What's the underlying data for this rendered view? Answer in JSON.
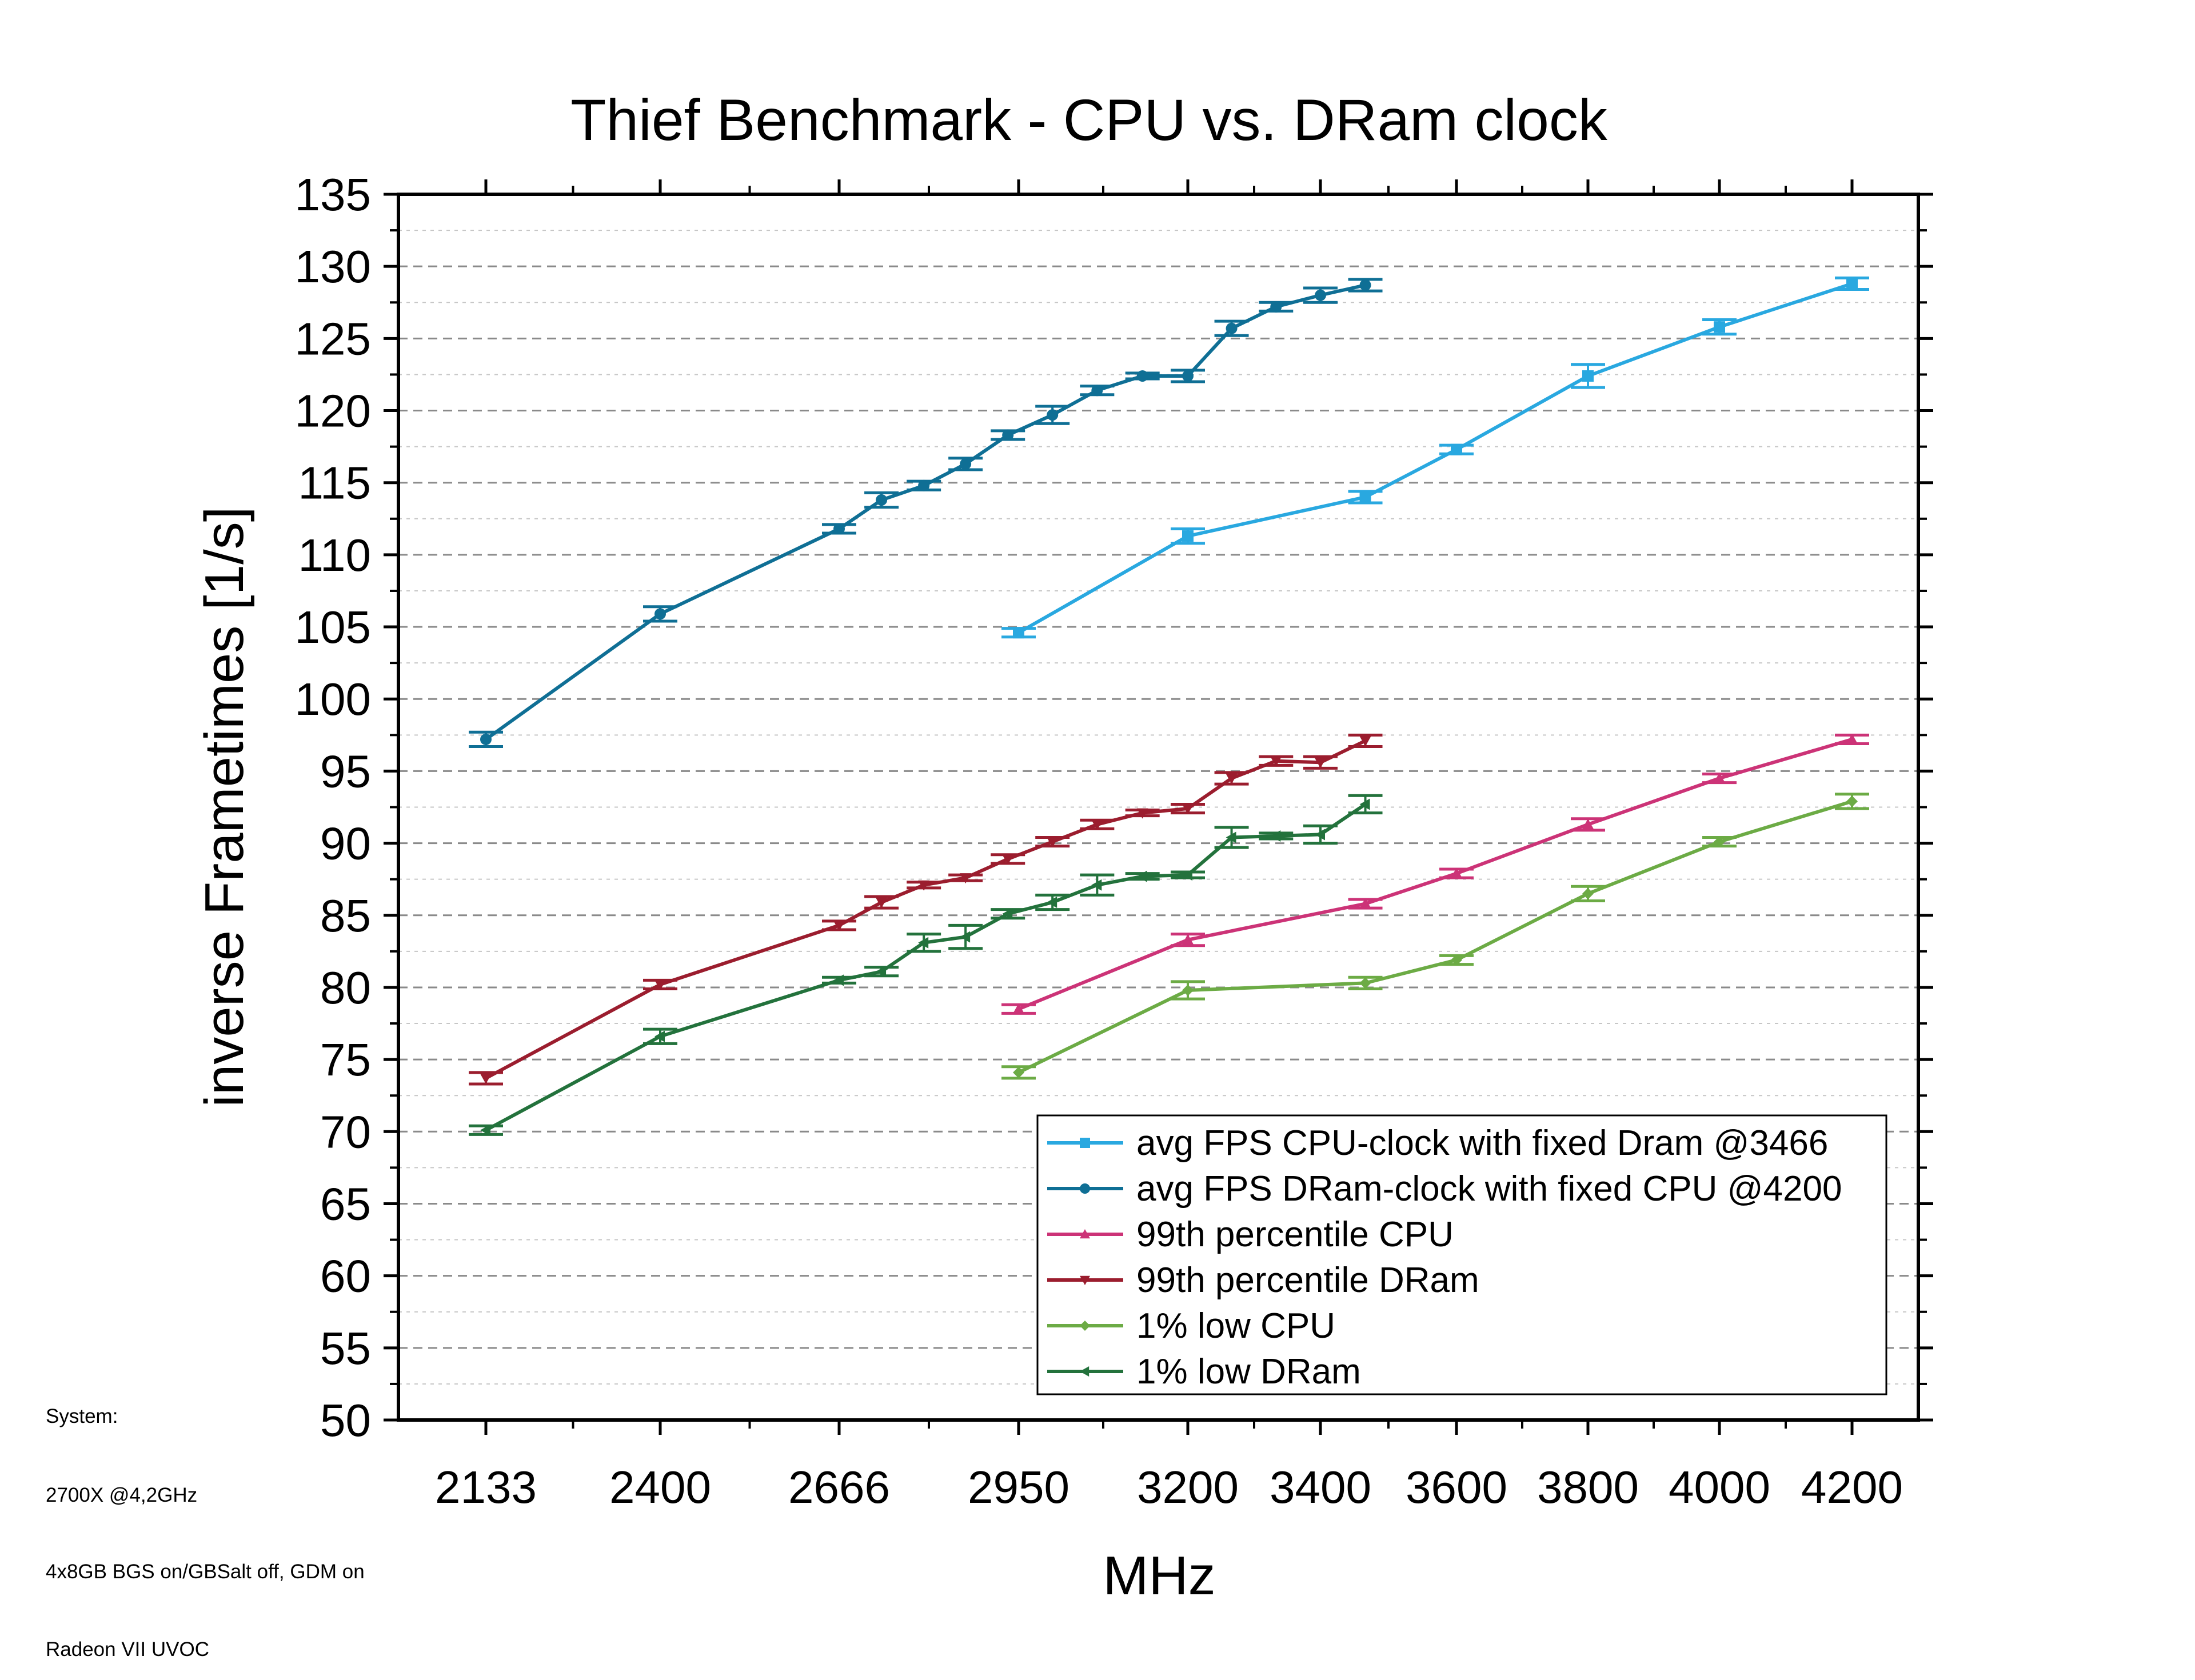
{
  "chart_data": {
    "type": "line",
    "title": "Thief Benchmark - CPU vs. DRam clock",
    "xlabel": "MHz",
    "ylabel": "inverse Frametimes [1/s]",
    "ylim": [
      50,
      135
    ],
    "y_ticks": [
      50,
      55,
      60,
      65,
      70,
      75,
      80,
      85,
      90,
      95,
      100,
      105,
      110,
      115,
      120,
      125,
      130,
      135
    ],
    "x_ticks": [
      "2133",
      "2400",
      "2666",
      "2950",
      "3200",
      "3400",
      "3600",
      "3800",
      "4000",
      "4200"
    ],
    "x_tick_values": [
      2133,
      2400,
      2666,
      2950,
      3200,
      3400,
      3600,
      3800,
      4000,
      4200
    ],
    "xlim": [
      2000,
      4300
    ],
    "grid": true,
    "legend_position": "bottom-right",
    "series": [
      {
        "name": "avg FPS CPU-clock with fixed Dram @3466",
        "color": "#29a8e0",
        "marker": "square",
        "x": [
          2950,
          3200,
          3466,
          3600,
          3800,
          4000,
          4200
        ],
        "y": [
          104.6,
          111.3,
          114.0,
          117.3,
          122.4,
          125.8,
          128.8
        ],
        "err": [
          0.3,
          0.5,
          0.4,
          0.3,
          0.8,
          0.5,
          0.4
        ]
      },
      {
        "name": "avg FPS DRam-clock with fixed CPU @4200",
        "color": "#0f6f95",
        "marker": "circle",
        "x": [
          2133,
          2400,
          2666,
          2733,
          2800,
          2866,
          2933,
          3000,
          3066,
          3133,
          3200,
          3266,
          3333,
          3400,
          3466
        ],
        "y": [
          97.2,
          105.9,
          111.8,
          113.8,
          114.8,
          116.3,
          118.3,
          119.7,
          121.4,
          122.4,
          122.4,
          125.7,
          127.2,
          128.0,
          128.7
        ],
        "err": [
          0.5,
          0.5,
          0.3,
          0.5,
          0.3,
          0.4,
          0.3,
          0.6,
          0.3,
          0.2,
          0.4,
          0.5,
          0.3,
          0.5,
          0.4
        ]
      },
      {
        "name": "99th percentile CPU",
        "color": "#cc3377",
        "marker": "triangle-up",
        "x": [
          2950,
          3200,
          3466,
          3600,
          3800,
          4000,
          4200
        ],
        "y": [
          78.5,
          83.3,
          85.8,
          87.9,
          91.3,
          94.5,
          97.2
        ],
        "err": [
          0.3,
          0.4,
          0.3,
          0.3,
          0.4,
          0.3,
          0.3
        ]
      },
      {
        "name": "99th percentile DRam",
        "color": "#9b1d2e",
        "marker": "triangle-down",
        "x": [
          2133,
          2400,
          2666,
          2733,
          2800,
          2866,
          2933,
          3000,
          3066,
          3133,
          3200,
          3266,
          3333,
          3400,
          3466
        ],
        "y": [
          73.7,
          80.2,
          84.3,
          85.9,
          87.1,
          87.6,
          88.9,
          90.1,
          91.3,
          92.1,
          92.4,
          94.5,
          95.7,
          95.6,
          97.1
        ],
        "err": [
          0.4,
          0.3,
          0.3,
          0.4,
          0.2,
          0.2,
          0.3,
          0.3,
          0.3,
          0.2,
          0.3,
          0.4,
          0.3,
          0.4,
          0.4
        ]
      },
      {
        "name": "1% low CPU",
        "color": "#6cab45",
        "marker": "diamond",
        "x": [
          2950,
          3200,
          3466,
          3600,
          3800,
          4000,
          4200
        ],
        "y": [
          74.1,
          79.8,
          80.3,
          81.9,
          86.5,
          90.1,
          92.9
        ],
        "err": [
          0.4,
          0.6,
          0.4,
          0.3,
          0.5,
          0.3,
          0.5
        ]
      },
      {
        "name": "1% low DRam",
        "color": "#23723c",
        "marker": "triangle-left",
        "x": [
          2133,
          2400,
          2666,
          2733,
          2800,
          2866,
          2933,
          3000,
          3066,
          3133,
          3200,
          3266,
          3333,
          3400,
          3466
        ],
        "y": [
          70.1,
          76.6,
          80.5,
          81.1,
          83.1,
          83.5,
          85.1,
          85.9,
          87.1,
          87.7,
          87.8,
          90.4,
          90.5,
          90.6,
          92.7
        ],
        "err": [
          0.3,
          0.5,
          0.2,
          0.3,
          0.6,
          0.8,
          0.3,
          0.5,
          0.7,
          0.2,
          0.2,
          0.7,
          0.2,
          0.6,
          0.6
        ]
      }
    ]
  },
  "notes": [
    "System:",
    "2700X @4,2GHz",
    "4x8GB BGS on/GBSalt off, GDM on",
    "Radeon VII UVOC"
  ]
}
